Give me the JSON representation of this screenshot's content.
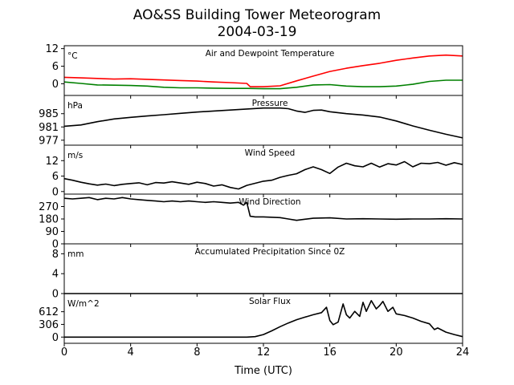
{
  "figure": {
    "title_line1": "AO&SS Building Tower Meteorogram",
    "title_line2": "2004-03-19",
    "xlabel": "Time (UTC)"
  },
  "chart_data": [
    {
      "type": "line",
      "title": "Air and Dewpoint Temperature",
      "unit": "°C",
      "ylim": [
        -4,
        13
      ],
      "yticks": [
        0,
        6,
        12
      ],
      "series": [
        {
          "color": "#ff0000",
          "x": [
            0,
            1,
            2,
            3,
            4,
            5,
            6,
            7,
            8,
            9,
            10,
            11,
            11.2,
            12,
            13,
            14,
            15,
            16,
            17,
            18,
            19,
            20,
            21,
            22,
            23,
            24
          ],
          "y": [
            2.2,
            2.0,
            1.8,
            1.6,
            1.7,
            1.5,
            1.3,
            1.1,
            0.9,
            0.6,
            0.4,
            0.1,
            -1.0,
            -1.0,
            -0.7,
            1.0,
            2.6,
            4.2,
            5.3,
            6.2,
            7.0,
            8.0,
            8.8,
            9.5,
            9.8,
            9.5
          ]
        },
        {
          "color": "#008000",
          "x": [
            0,
            1,
            2,
            3,
            4,
            5,
            6,
            7,
            8,
            9,
            10,
            11,
            12,
            13,
            14,
            15,
            16,
            17,
            18,
            19,
            20,
            21,
            22,
            23,
            24
          ],
          "y": [
            0.6,
            0.1,
            -0.4,
            -0.5,
            -0.6,
            -0.8,
            -1.2,
            -1.4,
            -1.4,
            -1.5,
            -1.6,
            -1.6,
            -1.7,
            -1.7,
            -1.2,
            -0.4,
            -0.3,
            -0.8,
            -1.0,
            -1.0,
            -0.8,
            -0.2,
            0.8,
            1.2,
            1.2
          ]
        }
      ]
    },
    {
      "type": "line",
      "title": "Pressure",
      "unit": "hPa",
      "ylim": [
        975.5,
        990.5
      ],
      "yticks": [
        977,
        981,
        985
      ],
      "series": [
        {
          "color": "#000000",
          "x": [
            0,
            1,
            2,
            3,
            4,
            5,
            6,
            7,
            8,
            9,
            10,
            11,
            12,
            13,
            13.5,
            14,
            14.5,
            15,
            15.5,
            16,
            17,
            18,
            19,
            20,
            21,
            22,
            23,
            24
          ],
          "y": [
            981.2,
            981.6,
            982.6,
            983.4,
            983.9,
            984.3,
            984.7,
            985.1,
            985.5,
            985.8,
            986.1,
            986.4,
            986.7,
            986.7,
            986.5,
            985.8,
            985.4,
            986.0,
            986.1,
            985.6,
            985.0,
            984.6,
            984.0,
            982.8,
            981.3,
            980.0,
            978.8,
            977.7
          ]
        }
      ]
    },
    {
      "type": "line",
      "title": "Wind Speed",
      "unit": "m/s",
      "ylim": [
        -1,
        18
      ],
      "yticks": [
        0,
        6,
        12
      ],
      "series": [
        {
          "color": "#000000",
          "x": [
            0,
            0.5,
            1,
            1.5,
            2,
            2.5,
            3,
            3.5,
            4,
            4.5,
            5,
            5.5,
            6,
            6.5,
            7,
            7.5,
            8,
            8.5,
            9,
            9.5,
            10,
            10.5,
            11,
            11.5,
            12,
            12.5,
            13,
            13.5,
            14,
            14.5,
            15,
            15.5,
            16,
            16.5,
            17,
            17.5,
            18,
            18.5,
            19,
            19.5,
            20,
            20.5,
            21,
            21.5,
            22,
            22.5,
            23,
            23.5,
            24
          ],
          "y": [
            5,
            4.4,
            3.6,
            3.0,
            2.5,
            2.9,
            2.3,
            2.8,
            3.1,
            3.4,
            2.6,
            3.5,
            3.3,
            3.8,
            3.3,
            2.8,
            3.6,
            3.1,
            2.1,
            2.6,
            1.6,
            1.0,
            2.4,
            3.2,
            4.0,
            4.4,
            5.5,
            6.3,
            6.9,
            8.5,
            9.6,
            8.5,
            7.0,
            9.5,
            11.0,
            10.0,
            9.6,
            11.0,
            9.5,
            10.8,
            10.3,
            11.6,
            9.6,
            11.0,
            10.8,
            11.3,
            10.2,
            11.2,
            10.5
          ]
        }
      ]
    },
    {
      "type": "line",
      "title": "Wind Direction",
      "unit": "",
      "ylim": [
        0,
        360
      ],
      "yticks": [
        0,
        90,
        180,
        270
      ],
      "series": [
        {
          "color": "#000000",
          "x": [
            0,
            0.5,
            1,
            1.5,
            2,
            2.5,
            3,
            3.5,
            4,
            4.5,
            5,
            5.5,
            6,
            6.5,
            7,
            7.5,
            8,
            8.5,
            9,
            9.5,
            10,
            10.5,
            10.8,
            11,
            11.2,
            11.5,
            12,
            13,
            13.5,
            14,
            14.5,
            15,
            16,
            17,
            18,
            19,
            20,
            21,
            22,
            23,
            24
          ],
          "y": [
            330,
            325,
            330,
            335,
            320,
            330,
            325,
            335,
            325,
            320,
            315,
            310,
            305,
            310,
            305,
            310,
            305,
            300,
            305,
            300,
            295,
            300,
            280,
            300,
            200,
            195,
            195,
            190,
            180,
            170,
            178,
            185,
            188,
            180,
            182,
            180,
            178,
            180,
            180,
            182,
            180
          ]
        }
      ]
    },
    {
      "type": "line",
      "title": "Accumulated Precipitation Since 0Z",
      "unit": "mm",
      "ylim": [
        0,
        10
      ],
      "yticks": [
        0,
        4,
        8
      ],
      "series": [
        {
          "color": "#000000",
          "x": [
            0,
            24
          ],
          "y": [
            0,
            0
          ]
        }
      ]
    },
    {
      "type": "line",
      "title": "Solar Flux",
      "unit": "W/m^2",
      "ylim": [
        -150,
        1050
      ],
      "yticks": [
        0,
        306,
        612
      ],
      "series": [
        {
          "color": "#000000",
          "x": [
            0,
            2,
            4,
            6,
            8,
            10,
            11,
            11.5,
            12,
            12.5,
            13,
            13.5,
            14,
            14.5,
            15,
            15.5,
            15.8,
            16,
            16.2,
            16.5,
            16.8,
            17,
            17.2,
            17.5,
            17.8,
            18,
            18.2,
            18.5,
            18.8,
            19,
            19.2,
            19.5,
            19.8,
            20,
            20.5,
            21,
            21.5,
            22,
            22.3,
            22.5,
            23,
            23.5,
            24
          ],
          "y": [
            0,
            0,
            0,
            0,
            0,
            0,
            0,
            10,
            60,
            150,
            250,
            340,
            420,
            480,
            540,
            590,
            720,
            400,
            300,
            360,
            800,
            540,
            460,
            620,
            500,
            840,
            620,
            880,
            680,
            760,
            860,
            620,
            720,
            560,
            520,
            460,
            380,
            320,
            180,
            220,
            120,
            60,
            10
          ]
        }
      ]
    }
  ]
}
